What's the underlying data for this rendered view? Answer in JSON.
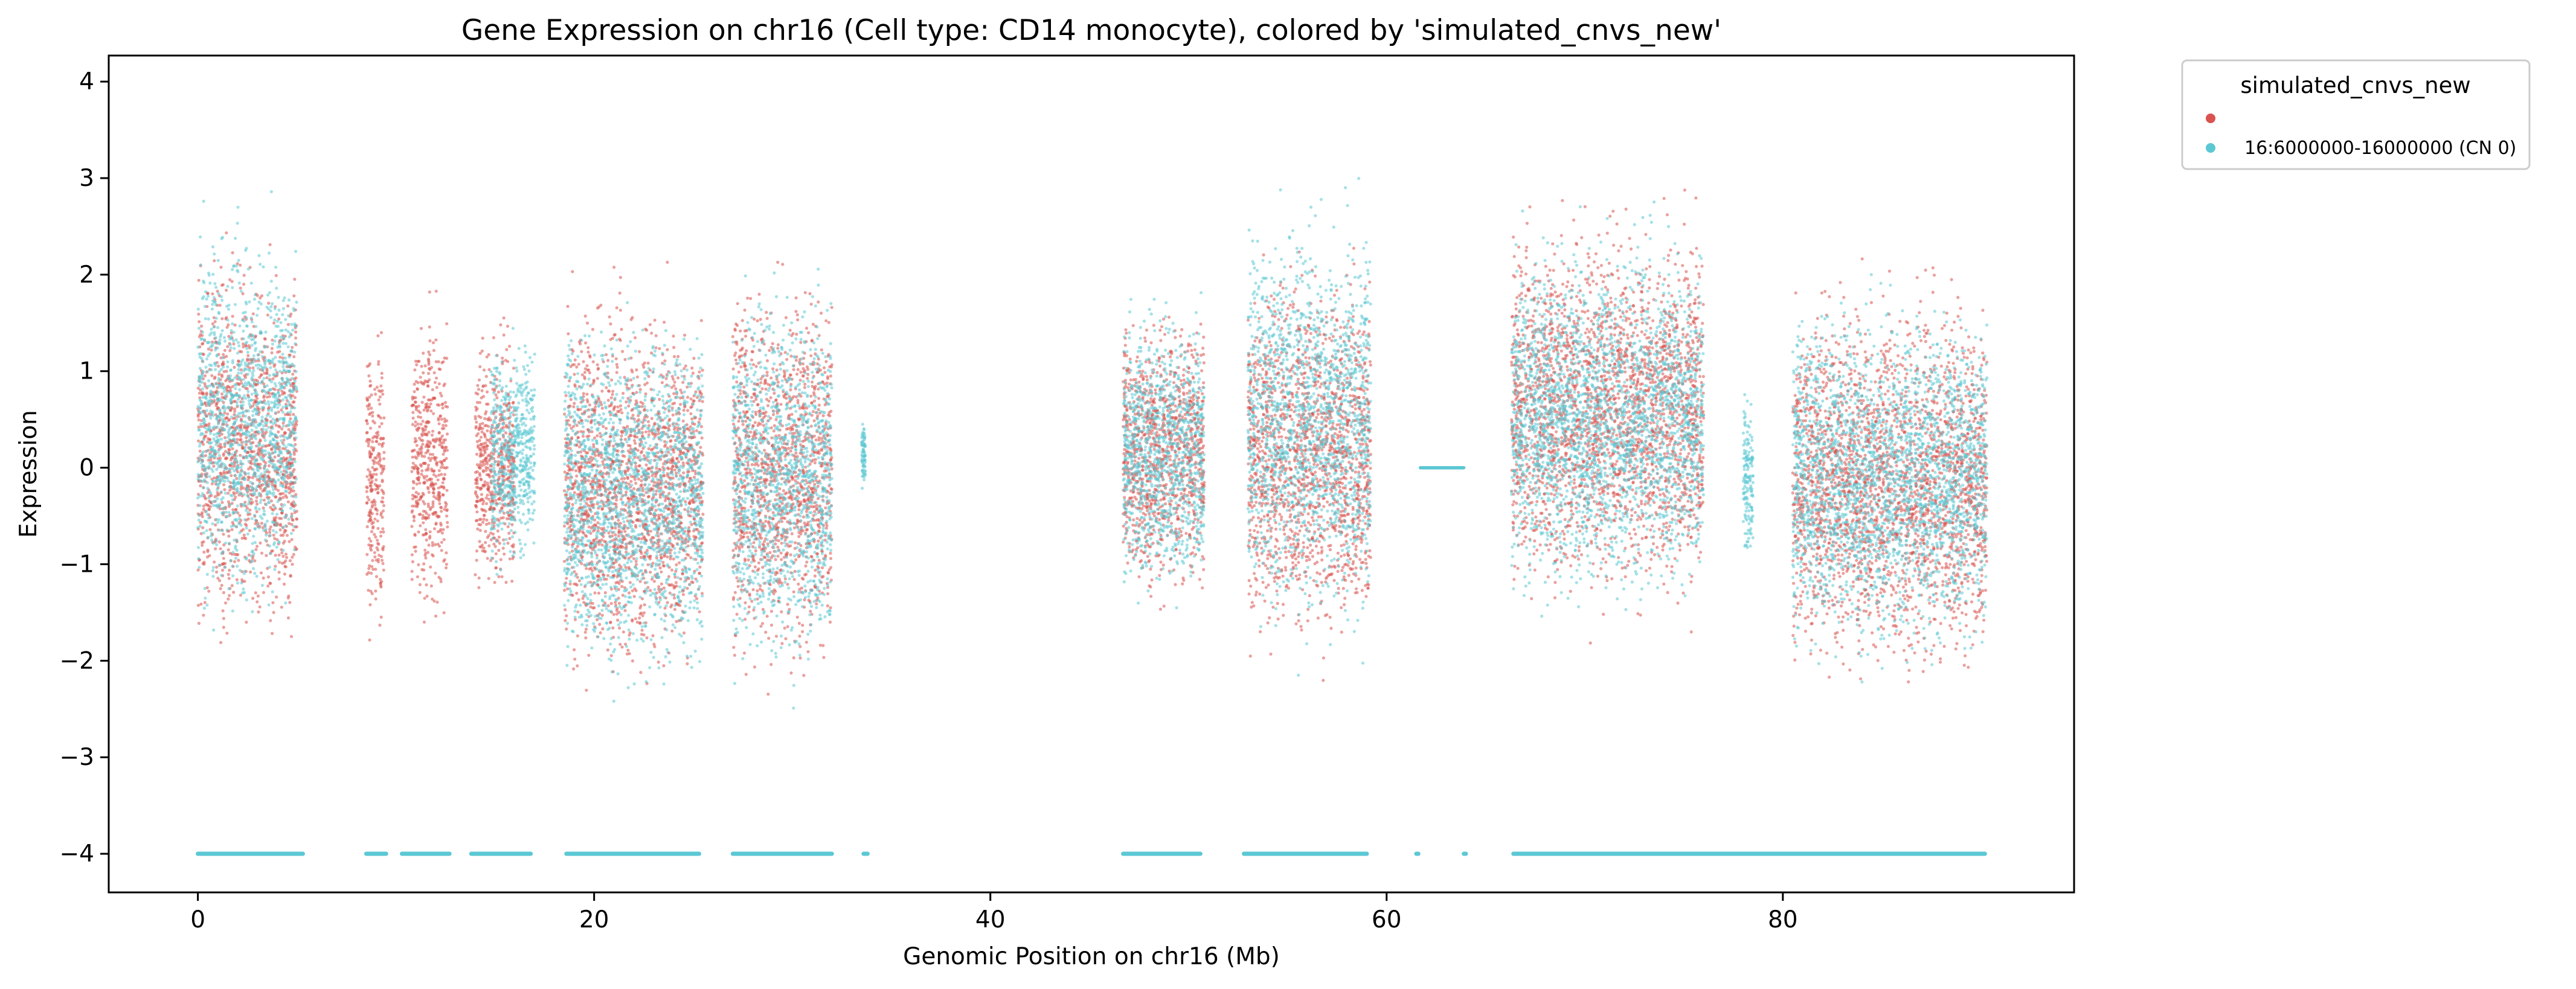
{
  "chart_data": {
    "type": "scatter",
    "title": "Gene Expression on chr16 (Cell type: CD14 monocyte), colored by 'simulated_cnvs_new'",
    "xlabel": "Genomic Position on chr16 (Mb)",
    "ylabel": "Expression",
    "xlim": [
      -4.5,
      94.7
    ],
    "ylim": [
      -4.4,
      4.27
    ],
    "xticks": [
      0,
      20,
      40,
      60,
      80
    ],
    "yticks": [
      4,
      3,
      2,
      1,
      0,
      -1,
      -2,
      -3,
      -4
    ],
    "ytick_labels": [
      "4",
      "3",
      "2",
      "1",
      "0",
      "−1",
      "−2",
      "−3",
      "−4"
    ],
    "grid": false,
    "legend": {
      "title": "simulated_cnvs_new",
      "placement": "outside-top-right",
      "entries": [
        {
          "label": "",
          "color": "#d9534f"
        },
        {
          "label": "16:6000000-16000000 (CN 0)",
          "color": "#5bc8d4"
        }
      ]
    },
    "series": [
      {
        "color": "#d9534f",
        "clusters": [
          [
            0.0,
            5.0,
            -2.9,
            3.3
          ],
          [
            8.5,
            9.4,
            -2.7,
            2.4
          ],
          [
            10.8,
            12.6,
            -2.5,
            2.6
          ],
          [
            14.0,
            16.0,
            -2.2,
            2.2
          ],
          [
            18.5,
            25.5,
            -3.3,
            2.9
          ],
          [
            27.0,
            32.0,
            -3.3,
            3.2
          ],
          [
            46.7,
            50.8,
            -2.3,
            2.6
          ],
          [
            53.0,
            59.2,
            -3.0,
            3.3
          ],
          [
            66.3,
            76.0,
            -2.5,
            3.7
          ],
          [
            80.5,
            90.3,
            -3.3,
            3.0
          ]
        ]
      },
      {
        "color": "#5bc8d4",
        "clusters": [
          [
            0.0,
            5.0,
            -2.7,
            3.65
          ],
          [
            14.8,
            17.0,
            -1.8,
            2.1
          ],
          [
            18.5,
            25.5,
            -3.3,
            2.7
          ],
          [
            27.0,
            32.0,
            -3.3,
            3.1
          ],
          [
            33.5,
            33.7,
            -0.5,
            0.8
          ],
          [
            46.7,
            50.8,
            -2.2,
            2.5
          ],
          [
            53.0,
            59.2,
            -2.9,
            3.9
          ],
          [
            61.7,
            63.9,
            0.0,
            0.0
          ],
          [
            66.3,
            76.0,
            -2.5,
            3.5
          ],
          [
            78.0,
            78.5,
            -1.6,
            1.4
          ],
          [
            80.5,
            90.3,
            -3.1,
            2.9
          ]
        ],
        "baseline": {
          "y": -4,
          "segments": [
            [
              0.0,
              5.3
            ],
            [
              8.5,
              9.5
            ],
            [
              10.3,
              12.7
            ],
            [
              13.8,
              16.8
            ],
            [
              18.6,
              25.3
            ],
            [
              27.0,
              32.0
            ],
            [
              33.6,
              33.8
            ],
            [
              46.7,
              50.6
            ],
            [
              52.8,
              59.0
            ],
            [
              61.5,
              61.6
            ],
            [
              63.9,
              64.0
            ],
            [
              66.4,
              90.2
            ]
          ]
        }
      }
    ]
  }
}
